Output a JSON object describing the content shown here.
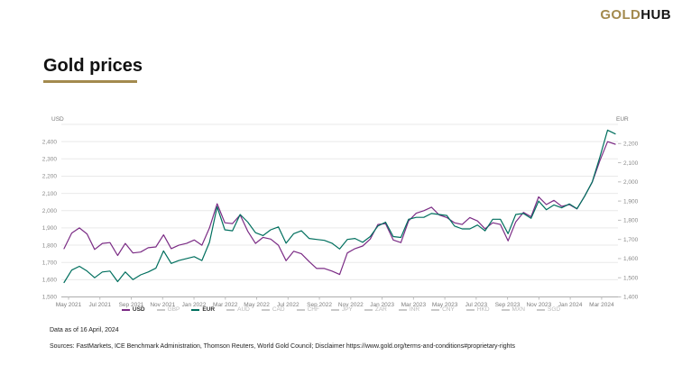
{
  "header": {
    "logo_gold": "GOLD",
    "logo_hub": "HUB"
  },
  "title": "Gold prices",
  "chart_data": {
    "type": "line",
    "title": "Gold prices",
    "left_axis": {
      "label": "USD",
      "min": 1500,
      "max": 2500,
      "ticks": [
        {
          "v": 1500,
          "t": "1,500"
        },
        {
          "v": 1600,
          "t": "1,600"
        },
        {
          "v": 1700,
          "t": "1,700"
        },
        {
          "v": 1800,
          "t": "1,800"
        },
        {
          "v": 1900,
          "t": "1,900"
        },
        {
          "v": 2000,
          "t": "2,000"
        },
        {
          "v": 2100,
          "t": "2,100"
        },
        {
          "v": 2200,
          "t": "2,200"
        },
        {
          "v": 2300,
          "t": "2,300"
        },
        {
          "v": 2400,
          "t": "2,400"
        }
      ]
    },
    "right_axis": {
      "label": "EUR",
      "min": 1400,
      "max": 2300,
      "ticks": [
        {
          "v": 1400,
          "t": "1,400"
        },
        {
          "v": 1500,
          "t": "1,500"
        },
        {
          "v": 1600,
          "t": "1,600"
        },
        {
          "v": 1700,
          "t": "1,700"
        },
        {
          "v": 1800,
          "t": "1,800"
        },
        {
          "v": 1900,
          "t": "1,900"
        },
        {
          "v": 2000,
          "t": "2,000"
        },
        {
          "v": 2100,
          "t": "2,100"
        },
        {
          "v": 2200,
          "t": "2,200"
        }
      ]
    },
    "x_ticks": [
      "May 2021",
      "Jul 2021",
      "Sep 2021",
      "Nov 2021",
      "Jan 2022",
      "Mar 2022",
      "May 2022",
      "Jul 2022",
      "Sep 2022",
      "Nov 2022",
      "Jan 2023",
      "Mar 2023",
      "May 2023",
      "Jul 2023",
      "Sep 2023",
      "Nov 2023",
      "Jan 2024",
      "Mar 2024"
    ],
    "grid": true,
    "legend_position": "bottom",
    "series": [
      {
        "name": "USD",
        "color": "#7b2c85",
        "axis": "left",
        "values": [
          1780,
          1870,
          1900,
          1865,
          1775,
          1810,
          1815,
          1740,
          1810,
          1755,
          1760,
          1785,
          1790,
          1860,
          1780,
          1800,
          1810,
          1830,
          1800,
          1900,
          2040,
          1930,
          1925,
          1975,
          1880,
          1810,
          1845,
          1835,
          1800,
          1710,
          1765,
          1750,
          1705,
          1665,
          1665,
          1650,
          1630,
          1755,
          1780,
          1795,
          1835,
          1920,
          1925,
          1830,
          1815,
          1940,
          1985,
          2000,
          2020,
          1975,
          1960,
          1930,
          1920,
          1960,
          1940,
          1895,
          1930,
          1920,
          1825,
          1935,
          1990,
          1965,
          2080,
          2035,
          2060,
          2025,
          2035,
          2010,
          2085,
          2165,
          2290,
          2400,
          2385
        ]
      },
      {
        "name": "EUR",
        "color": "#006f5e",
        "axis": "right",
        "values": [
          1475,
          1540,
          1560,
          1535,
          1500,
          1530,
          1535,
          1480,
          1530,
          1490,
          1515,
          1530,
          1550,
          1640,
          1575,
          1590,
          1600,
          1610,
          1590,
          1685,
          1870,
          1750,
          1745,
          1830,
          1790,
          1735,
          1720,
          1750,
          1765,
          1680,
          1730,
          1745,
          1705,
          1700,
          1695,
          1680,
          1650,
          1700,
          1705,
          1685,
          1715,
          1770,
          1790,
          1715,
          1710,
          1805,
          1815,
          1815,
          1835,
          1830,
          1825,
          1770,
          1755,
          1755,
          1775,
          1745,
          1805,
          1805,
          1730,
          1830,
          1835,
          1810,
          1900,
          1855,
          1880,
          1865,
          1885,
          1860,
          1925,
          2000,
          2130,
          2270,
          2250
        ]
      }
    ],
    "legend": [
      {
        "label": "USD",
        "color": "#7b2c85",
        "active": true
      },
      {
        "label": "GBP",
        "color": "#c9c9c9",
        "active": false
      },
      {
        "label": "EUR",
        "color": "#006f5e",
        "active": true
      },
      {
        "label": "AUD",
        "color": "#c9c9c9",
        "active": false
      },
      {
        "label": "CAD",
        "color": "#c9c9c9",
        "active": false
      },
      {
        "label": "CHF",
        "color": "#c9c9c9",
        "active": false
      },
      {
        "label": "JPY",
        "color": "#c9c9c9",
        "active": false
      },
      {
        "label": "ZAR",
        "color": "#c9c9c9",
        "active": false
      },
      {
        "label": "INR",
        "color": "#c9c9c9",
        "active": false
      },
      {
        "label": "CNY",
        "color": "#c9c9c9",
        "active": false
      },
      {
        "label": "HKD",
        "color": "#c9c9c9",
        "active": false
      },
      {
        "label": "MXN",
        "color": "#c9c9c9",
        "active": false
      },
      {
        "label": "SGD",
        "color": "#c9c9c9",
        "active": false
      }
    ]
  },
  "footer": {
    "data_as_of": "Data as of 16 April, 2024",
    "sources": "Sources: FastMarkets, ICE Benchmark Administration, Thomson Reuters, World Gold Council; Disclaimer https://www.gold.org/terms-and-conditions#proprietary-rights"
  }
}
